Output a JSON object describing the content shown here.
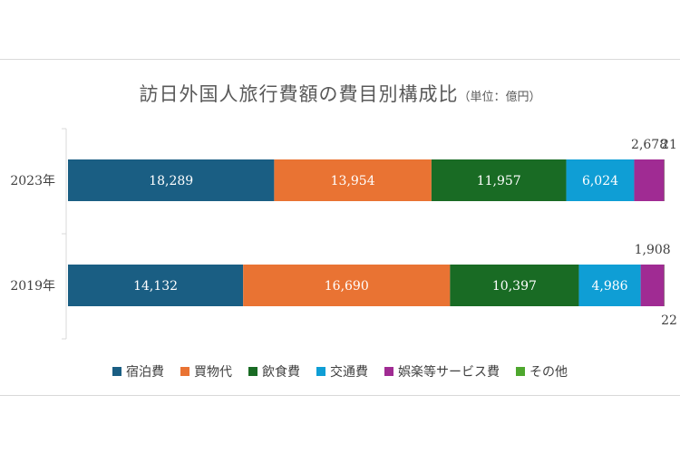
{
  "title": "訪日外国人旅行費額の費目別構成比",
  "unit_note": "（単位：億円）",
  "chart_data": {
    "type": "bar",
    "orientation": "horizontal",
    "stacked": true,
    "categories": [
      "2023年",
      "2019年"
    ],
    "series": [
      {
        "name": "宿泊費",
        "color": "#1a5e83",
        "values": [
          18289,
          14132
        ]
      },
      {
        "name": "買物代",
        "color": "#e97333",
        "values": [
          13954,
          16690
        ]
      },
      {
        "name": "飲食費",
        "color": "#196b24",
        "values": [
          11957,
          10397
        ]
      },
      {
        "name": "交通費",
        "color": "#0f9ed5",
        "values": [
          6024,
          4986
        ]
      },
      {
        "name": "娯楽等サービス費",
        "color": "#a02b93",
        "values": [
          2678,
          1908
        ]
      },
      {
        "name": "その他",
        "color": "#4ea72e",
        "values": [
          21,
          22
        ]
      }
    ],
    "value_labels": {
      "2023年": [
        "18,289",
        "13,954",
        "11,957",
        "6,024",
        "2,678",
        "21"
      ],
      "2019年": [
        "14,132",
        "16,690",
        "10,397",
        "4,986",
        "1,908",
        "22"
      ]
    },
    "legend": "bottom",
    "grid": false
  }
}
